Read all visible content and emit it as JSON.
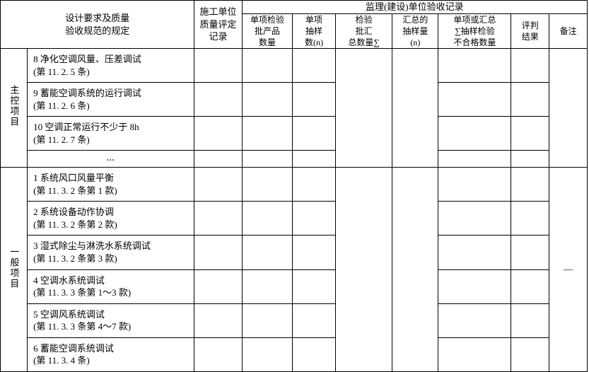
{
  "headers": {
    "design_req": "设计要求及质量\n验收规范的规定",
    "construction_record": "施工单位\n质量评定\n记录",
    "supervision_group": "监理(建设)单位验收记录",
    "s1": "单项检验\n批产品\n数量",
    "s2": "单项\n抽样\n数(n)",
    "s3": "检验\n批汇\n总数量∑",
    "s4": "汇总的\n抽样量\n(n)",
    "s5": "单项或汇总\n∑抽样检验\n不合格数量",
    "s6": "评判\n结果",
    "s7": "备注"
  },
  "categories": {
    "main": "主控项目",
    "general": "一般项目"
  },
  "main_items": [
    {
      "num": "8",
      "text": "净化空调风量、压差调试",
      "ref": "(第 11. 2. 5 条)"
    },
    {
      "num": "9",
      "text": "蓄能空调系统的运行调试",
      "ref": "(第 11. 2. 6 条)"
    },
    {
      "num": "10",
      "text": "空调正常运行不少于 8h",
      "ref": "(第 11. 2. 7 条)"
    }
  ],
  "ellipsis": "…",
  "general_items": [
    {
      "num": "1",
      "text": "系统风口风量平衡",
      "ref": "(第 11. 3. 2 条第 1 款)"
    },
    {
      "num": "2",
      "text": "系统设备动作协调",
      "ref": "(第 11. 3. 2 条第 2 款)"
    },
    {
      "num": "3",
      "text": "湿式除尘与淋洗水系统调试",
      "ref": "(第 11. 3. 2 条第 3 款)"
    },
    {
      "num": "4",
      "text": "空调水系统调试",
      "ref": "(第 11. 3. 3 条第 1～3 款)"
    },
    {
      "num": "5",
      "text": "空调风系统调试",
      "ref": "(第 11. 3. 3 条第 4～7 款)"
    },
    {
      "num": "6",
      "text": "蓄能空调系统调试",
      "ref": "(第 11. 3. 4 条)"
    }
  ],
  "general_remark": "—"
}
